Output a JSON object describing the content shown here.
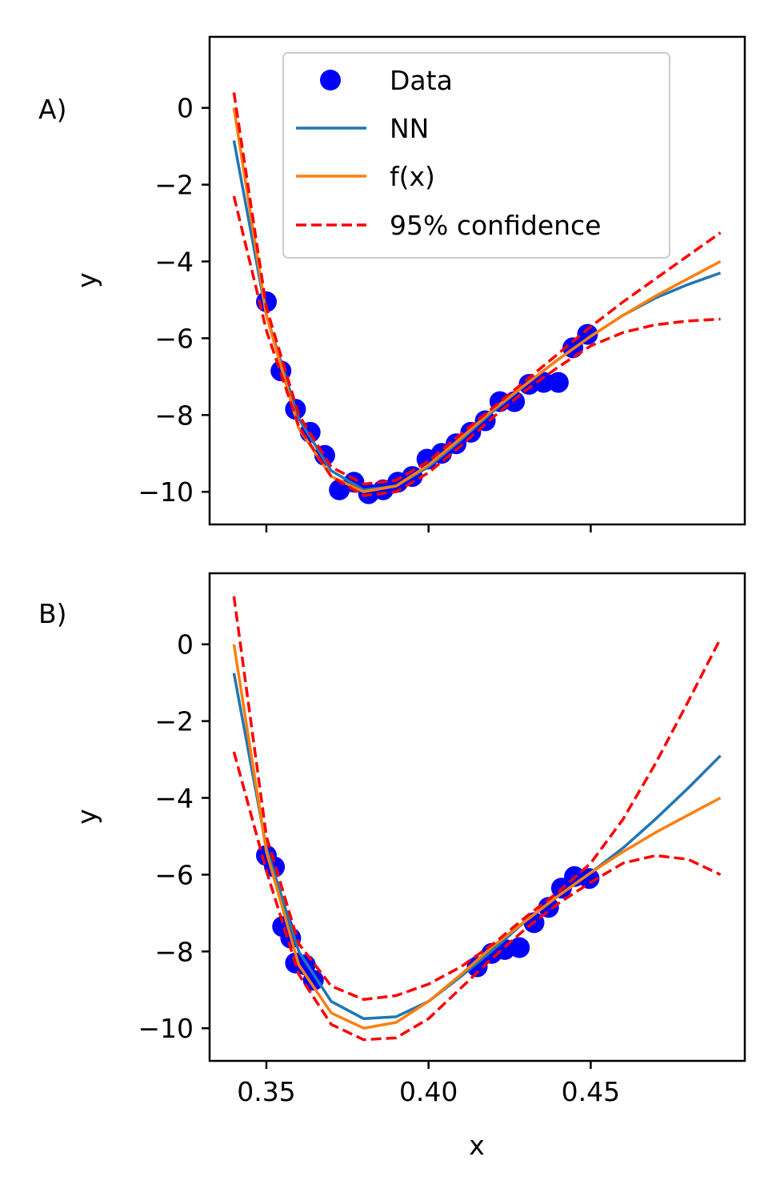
{
  "figure": {
    "colors": {
      "data": "#0000ff",
      "nn": "#1f77b4",
      "fx": "#ff7f0e",
      "confidence": "#ff0000"
    }
  },
  "chart_data": [
    {
      "type": "line",
      "panel_label": "A)",
      "xlabel": "",
      "ylabel": "y",
      "xlim": [
        0.3325,
        0.4975
      ],
      "ylim": [
        -10.85,
        1.85
      ],
      "x_ticks": [
        0.35,
        0.4,
        0.45
      ],
      "x_tick_labels": [
        "",
        "",
        ""
      ],
      "y_ticks": [
        0,
        -2,
        -4,
        -6,
        -8,
        -10
      ],
      "y_tick_labels": [
        "0",
        "−2",
        "−4",
        "−6",
        "−8",
        "−10"
      ],
      "grid": false,
      "legend": {
        "placement": "top-center",
        "entries": [
          {
            "label": "Data",
            "style": "marker",
            "color": "#0000ff"
          },
          {
            "label": "NN",
            "style": "solid",
            "color": "#1f77b4"
          },
          {
            "label": "f(x)",
            "style": "solid",
            "color": "#ff7f0e"
          },
          {
            "label": "95% confidence",
            "style": "dashed",
            "color": "#ff0000"
          }
        ]
      },
      "series": [
        {
          "name": "Data",
          "kind": "scatter",
          "color": "#0000ff",
          "x": [
            0.35,
            0.3545,
            0.359,
            0.3635,
            0.368,
            0.3725,
            0.377,
            0.3815,
            0.386,
            0.3905,
            0.395,
            0.3995,
            0.404,
            0.4085,
            0.413,
            0.4175,
            0.422,
            0.4265,
            0.431,
            0.4355,
            0.44,
            0.4445,
            0.449
          ],
          "y": [
            -5.05,
            -6.85,
            -7.85,
            -8.45,
            -9.05,
            -9.95,
            -9.75,
            -10.05,
            -9.95,
            -9.75,
            -9.6,
            -9.15,
            -9.0,
            -8.75,
            -8.45,
            -8.15,
            -7.65,
            -7.65,
            -7.2,
            -7.15,
            -7.15,
            -6.25,
            -5.9
          ]
        },
        {
          "name": "NN",
          "kind": "line",
          "color": "#1f77b4",
          "x": [
            0.34,
            0.35,
            0.36,
            0.37,
            0.38,
            0.39,
            0.4,
            0.41,
            0.42,
            0.43,
            0.44,
            0.45,
            0.46,
            0.47,
            0.48,
            0.49
          ],
          "y": [
            -0.85,
            -5.4,
            -8.1,
            -9.45,
            -9.95,
            -9.85,
            -9.35,
            -8.65,
            -7.9,
            -7.2,
            -6.55,
            -5.95,
            -5.4,
            -4.95,
            -4.6,
            -4.3
          ]
        },
        {
          "name": "f(x)",
          "kind": "line",
          "color": "#ff7f0e",
          "x": [
            0.34,
            0.35,
            0.36,
            0.37,
            0.38,
            0.39,
            0.4,
            0.41,
            0.42,
            0.43,
            0.44,
            0.45,
            0.46,
            0.47,
            0.48,
            0.49
          ],
          "y": [
            0.0,
            -5.4,
            -8.35,
            -9.6,
            -10.0,
            -9.85,
            -9.3,
            -8.6,
            -7.85,
            -7.2,
            -6.55,
            -5.95,
            -5.4,
            -4.9,
            -4.45,
            -4.0
          ]
        },
        {
          "name": "95% confidence (upper)",
          "kind": "dashed",
          "color": "#ff0000",
          "x": [
            0.34,
            0.35,
            0.36,
            0.37,
            0.38,
            0.39,
            0.4,
            0.41,
            0.42,
            0.43,
            0.44,
            0.45,
            0.46,
            0.47,
            0.48,
            0.49
          ],
          "y": [
            0.4,
            -5.2,
            -8.0,
            -9.35,
            -9.8,
            -9.7,
            -9.2,
            -8.5,
            -7.8,
            -7.1,
            -6.4,
            -5.7,
            -5.05,
            -4.45,
            -3.85,
            -3.25
          ]
        },
        {
          "name": "95% confidence (lower)",
          "kind": "dashed",
          "color": "#ff0000",
          "x": [
            0.34,
            0.35,
            0.36,
            0.37,
            0.38,
            0.39,
            0.4,
            0.41,
            0.42,
            0.43,
            0.44,
            0.45,
            0.46,
            0.47,
            0.48,
            0.49
          ],
          "y": [
            -2.3,
            -5.8,
            -8.3,
            -9.6,
            -10.1,
            -10.0,
            -9.5,
            -8.8,
            -8.05,
            -7.35,
            -6.75,
            -6.2,
            -5.85,
            -5.65,
            -5.55,
            -5.5
          ]
        }
      ]
    },
    {
      "type": "line",
      "panel_label": "B)",
      "xlabel": "x",
      "ylabel": "y",
      "xlim": [
        0.3325,
        0.4975
      ],
      "ylim": [
        -10.85,
        1.85
      ],
      "x_ticks": [
        0.35,
        0.4,
        0.45
      ],
      "x_tick_labels": [
        "0.35",
        "0.40",
        "0.45"
      ],
      "y_ticks": [
        0,
        -2,
        -4,
        -6,
        -8,
        -10
      ],
      "y_tick_labels": [
        "0",
        "−2",
        "−4",
        "−6",
        "−8",
        "−10"
      ],
      "grid": false,
      "series": [
        {
          "name": "Data",
          "kind": "scatter",
          "color": "#0000ff",
          "x": [
            0.35,
            0.3525,
            0.355,
            0.3575,
            0.359,
            0.362,
            0.3645,
            0.415,
            0.4195,
            0.4235,
            0.428,
            0.4325,
            0.437,
            0.441,
            0.445,
            0.4495
          ],
          "y": [
            -5.5,
            -5.8,
            -7.35,
            -7.65,
            -8.3,
            -8.35,
            -8.75,
            -8.4,
            -8.05,
            -7.95,
            -7.9,
            -7.25,
            -6.85,
            -6.35,
            -6.05,
            -6.1
          ]
        },
        {
          "name": "NN",
          "kind": "line",
          "color": "#1f77b4",
          "x": [
            0.34,
            0.35,
            0.36,
            0.37,
            0.38,
            0.39,
            0.4,
            0.41,
            0.42,
            0.43,
            0.44,
            0.45,
            0.46,
            0.47,
            0.48,
            0.49
          ],
          "y": [
            -0.75,
            -5.3,
            -8.0,
            -9.3,
            -9.75,
            -9.7,
            -9.3,
            -8.65,
            -7.95,
            -7.2,
            -6.55,
            -5.95,
            -5.3,
            -4.55,
            -3.75,
            -2.9
          ]
        },
        {
          "name": "f(x)",
          "kind": "line",
          "color": "#ff7f0e",
          "x": [
            0.34,
            0.35,
            0.36,
            0.37,
            0.38,
            0.39,
            0.4,
            0.41,
            0.42,
            0.43,
            0.44,
            0.45,
            0.46,
            0.47,
            0.48,
            0.49
          ],
          "y": [
            0.0,
            -5.4,
            -8.35,
            -9.6,
            -10.0,
            -9.85,
            -9.3,
            -8.6,
            -7.85,
            -7.2,
            -6.55,
            -5.95,
            -5.4,
            -4.9,
            -4.45,
            -4.0
          ]
        },
        {
          "name": "95% confidence (upper)",
          "kind": "dashed",
          "color": "#ff0000",
          "x": [
            0.34,
            0.35,
            0.36,
            0.37,
            0.38,
            0.39,
            0.4,
            0.41,
            0.42,
            0.43,
            0.44,
            0.45,
            0.46,
            0.47,
            0.48,
            0.49
          ],
          "y": [
            1.25,
            -5.0,
            -7.8,
            -8.9,
            -9.25,
            -9.15,
            -8.85,
            -8.4,
            -7.8,
            -7.1,
            -6.45,
            -5.7,
            -4.55,
            -3.1,
            -1.5,
            0.15
          ]
        },
        {
          "name": "95% confidence (lower)",
          "kind": "dashed",
          "color": "#ff0000",
          "x": [
            0.34,
            0.35,
            0.36,
            0.37,
            0.38,
            0.39,
            0.4,
            0.41,
            0.42,
            0.43,
            0.44,
            0.45,
            0.46,
            0.47,
            0.48,
            0.49
          ],
          "y": [
            -2.8,
            -5.9,
            -8.6,
            -9.9,
            -10.3,
            -10.25,
            -9.75,
            -8.95,
            -8.15,
            -7.4,
            -6.75,
            -6.2,
            -5.7,
            -5.5,
            -5.6,
            -6.0
          ]
        }
      ]
    }
  ]
}
